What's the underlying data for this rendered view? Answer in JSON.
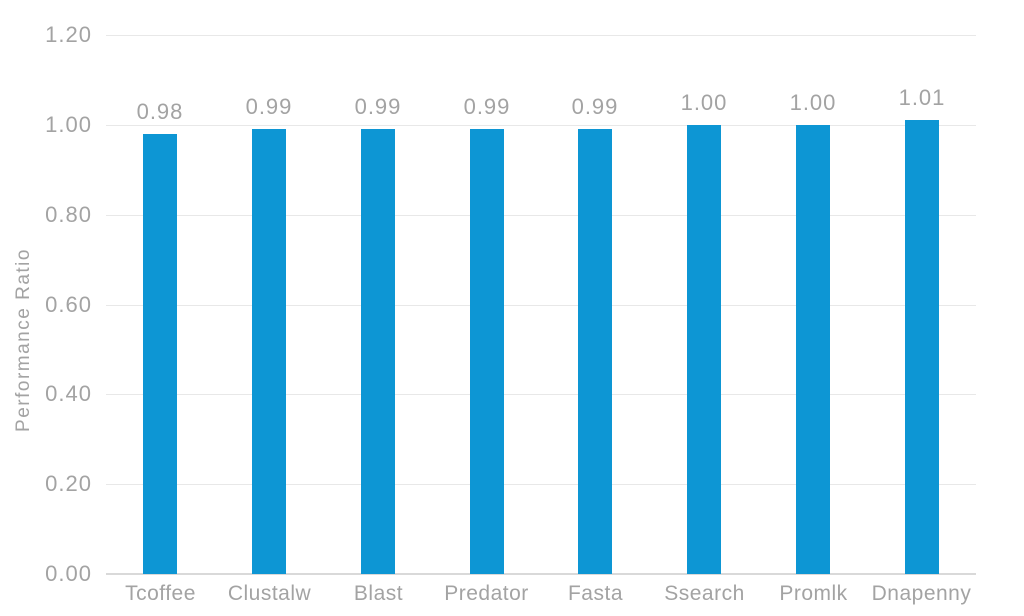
{
  "chart_data": {
    "type": "bar",
    "title": "",
    "xlabel": "",
    "ylabel": "Performance Ratio",
    "categories": [
      "Tcoffee",
      "Clustalw",
      "Blast",
      "Predator",
      "Fasta",
      "Ssearch",
      "Promlk",
      "Dnapenny"
    ],
    "values": [
      0.98,
      0.99,
      0.99,
      0.99,
      0.99,
      1.0,
      1.0,
      1.01
    ],
    "value_labels": [
      "0.98",
      "0.99",
      "0.99",
      "0.99",
      "0.99",
      "1.00",
      "1.00",
      "1.01"
    ],
    "ylim": [
      0.0,
      1.2
    ],
    "yticks": [
      0.0,
      0.2,
      0.4,
      0.6,
      0.8,
      1.0,
      1.2
    ],
    "ytick_labels": [
      "0.00",
      "0.20",
      "0.40",
      "0.60",
      "0.80",
      "1.00",
      "1.20"
    ],
    "grid": "horizontal",
    "legend": "none",
    "bar_color": "#0d96d4",
    "grid_color": "#e8e8e8",
    "axis_color": "#d9d9d9",
    "text_color": "#a3a3a3",
    "background": "#ffffff"
  }
}
